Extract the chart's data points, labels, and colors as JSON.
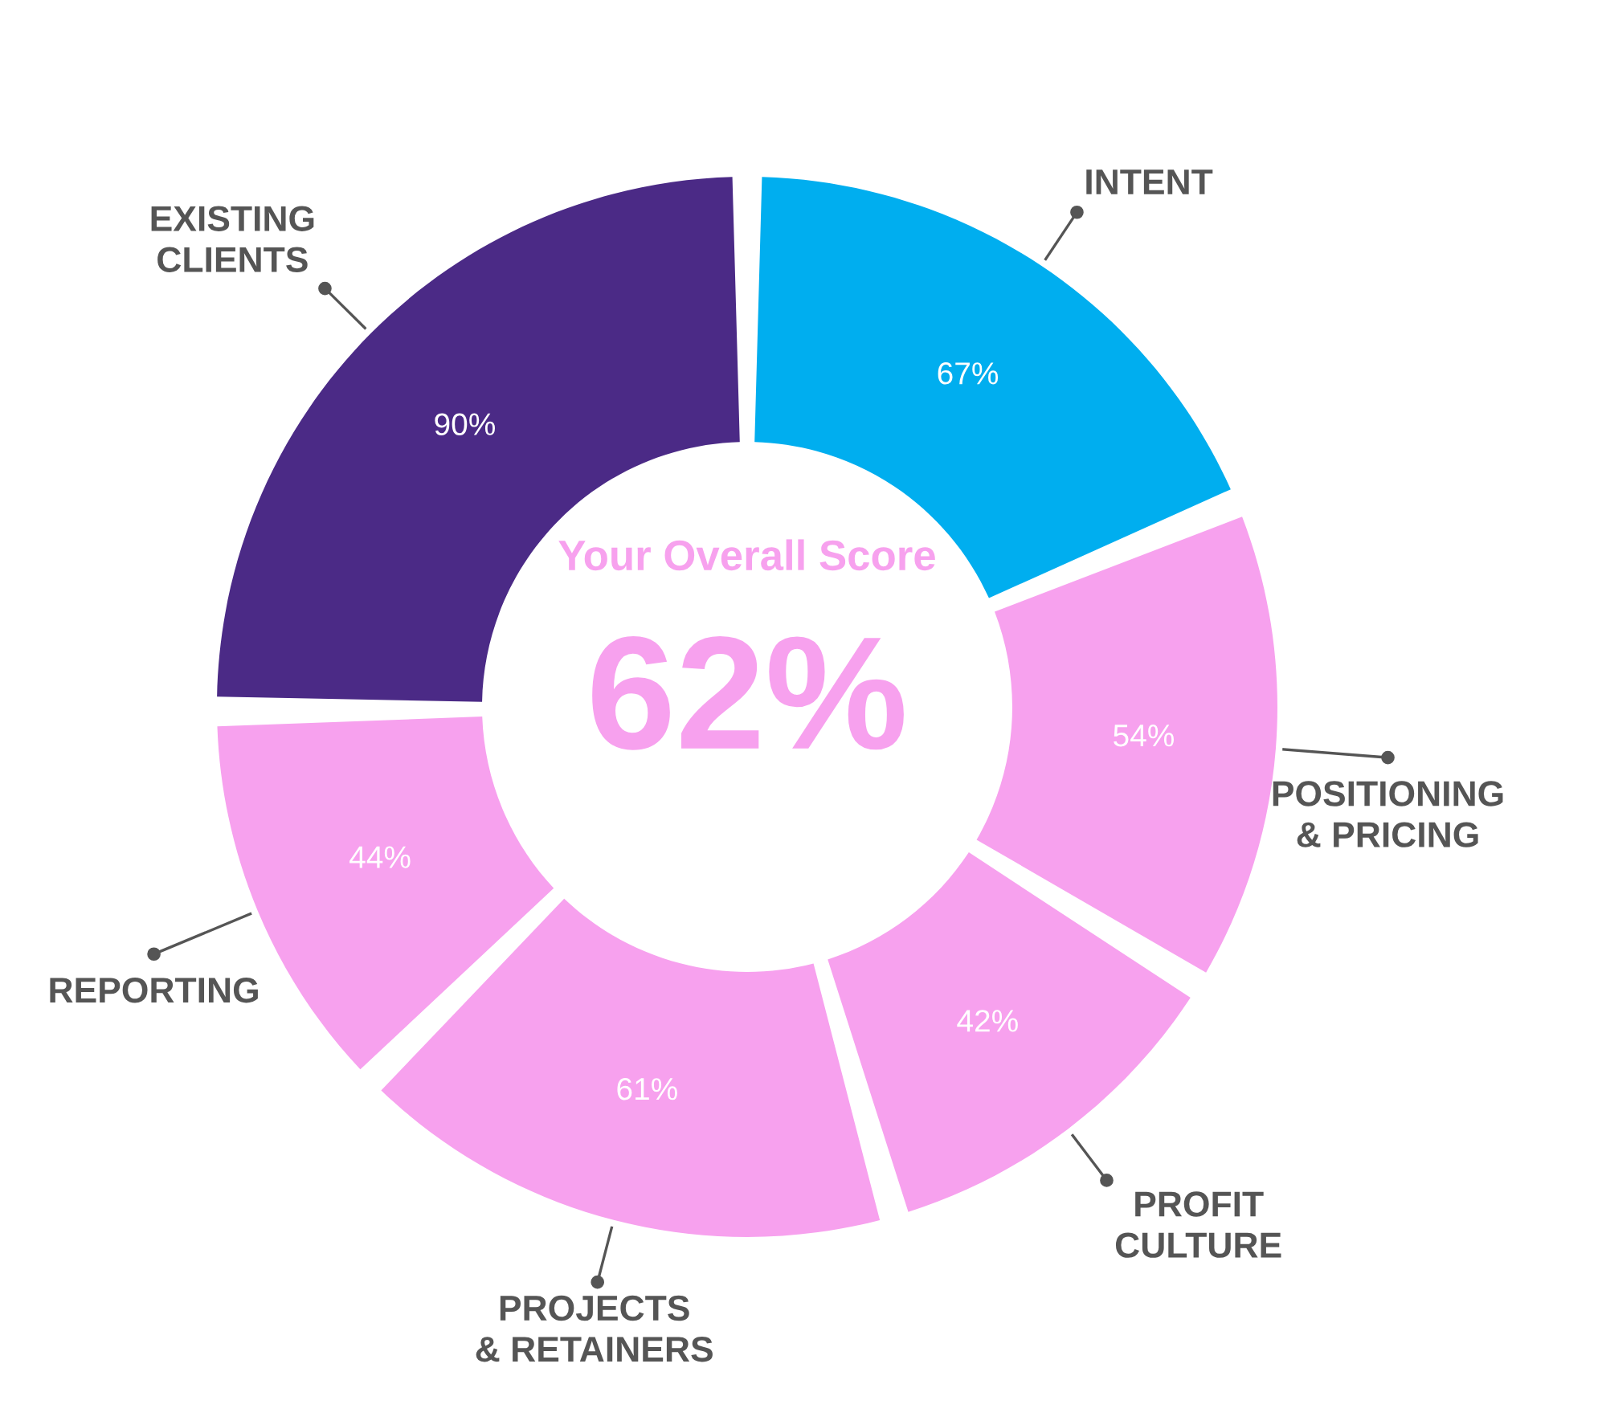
{
  "chart_data": {
    "type": "donut",
    "values": [
      67,
      54,
      42,
      61,
      44,
      90
    ],
    "categories": [
      "INTENT",
      "POSITIONING\n& PRICING",
      "PROFIT\nCULTURE",
      "PROJECTS\n& RETAINERS",
      "REPORTING",
      "EXISTING\nCLIENTS"
    ],
    "colors": [
      "#00aeef",
      "#f7a1ee",
      "#f7a1ee",
      "#f7a1ee",
      "#f7a1ee",
      "#4b2a86"
    ],
    "value_labels": [
      "67%",
      "54%",
      "42%",
      "61%",
      "44%",
      "90%"
    ],
    "annotations": [
      "Your Overall Score",
      "62%"
    ]
  }
}
